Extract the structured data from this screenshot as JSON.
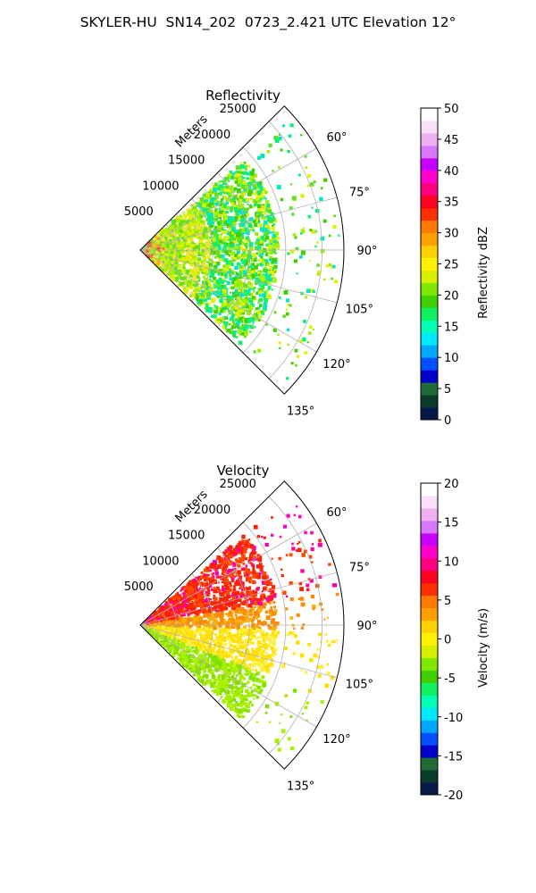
{
  "title": "SKYLER-HU  SN14_202  0723_2.421 UTC Elevation 12°",
  "chart_data": [
    {
      "type": "polar-sector",
      "title": "Reflectivity",
      "radial_axis_label": "Meters",
      "radial_ticks": [
        5000,
        10000,
        15000,
        20000,
        25000
      ],
      "r_max": 28000,
      "angle_range_deg": [
        45,
        135
      ],
      "angle_ticks": [
        "60°",
        "75°",
        "90°",
        "105°",
        "120°",
        "135°"
      ],
      "colorbar": {
        "label": "Reflectivity dBZ",
        "range": [
          0,
          50
        ],
        "ticks": [
          0,
          5,
          10,
          15,
          20,
          25,
          30,
          35,
          40,
          45,
          50
        ],
        "color_stops": [
          "#061a4a",
          "#0a3a2a",
          "#1f6b3a",
          "#0000c8",
          "#0050ff",
          "#00a8ff",
          "#00e8ff",
          "#00ffb0",
          "#10f060",
          "#40d000",
          "#80e800",
          "#d8f000",
          "#fff000",
          "#ffd000",
          "#ffa000",
          "#ff7800",
          "#ff3000",
          "#ff0020",
          "#ff0080",
          "#ff00c8",
          "#c800ff",
          "#d878ff",
          "#f0b0f0",
          "#f8e0f8",
          "#ffffff"
        ]
      }
    },
    {
      "type": "polar-sector",
      "title": "Velocity",
      "radial_axis_label": "Meters",
      "radial_ticks": [
        5000,
        10000,
        15000,
        20000,
        25000
      ],
      "r_max": 28000,
      "angle_range_deg": [
        45,
        135
      ],
      "angle_ticks": [
        "60°",
        "75°",
        "90°",
        "105°",
        "120°",
        "135°"
      ],
      "colorbar": {
        "label": "Velocity (m/s)",
        "range": [
          -20,
          20
        ],
        "ticks": [
          -20,
          -15,
          -10,
          -5,
          0,
          5,
          10,
          15,
          20
        ],
        "color_stops": [
          "#061a4a",
          "#0a3a2a",
          "#1f6b3a",
          "#0000c8",
          "#0050ff",
          "#00a8ff",
          "#00e8ff",
          "#00ffb0",
          "#10f060",
          "#40d000",
          "#80e800",
          "#d8f000",
          "#fff000",
          "#ffd000",
          "#ffa000",
          "#ff7800",
          "#ff3000",
          "#ff0020",
          "#ff0080",
          "#ff00c8",
          "#c800ff",
          "#d878ff",
          "#f0b0f0",
          "#f8e0f8",
          "#ffffff"
        ]
      }
    }
  ]
}
